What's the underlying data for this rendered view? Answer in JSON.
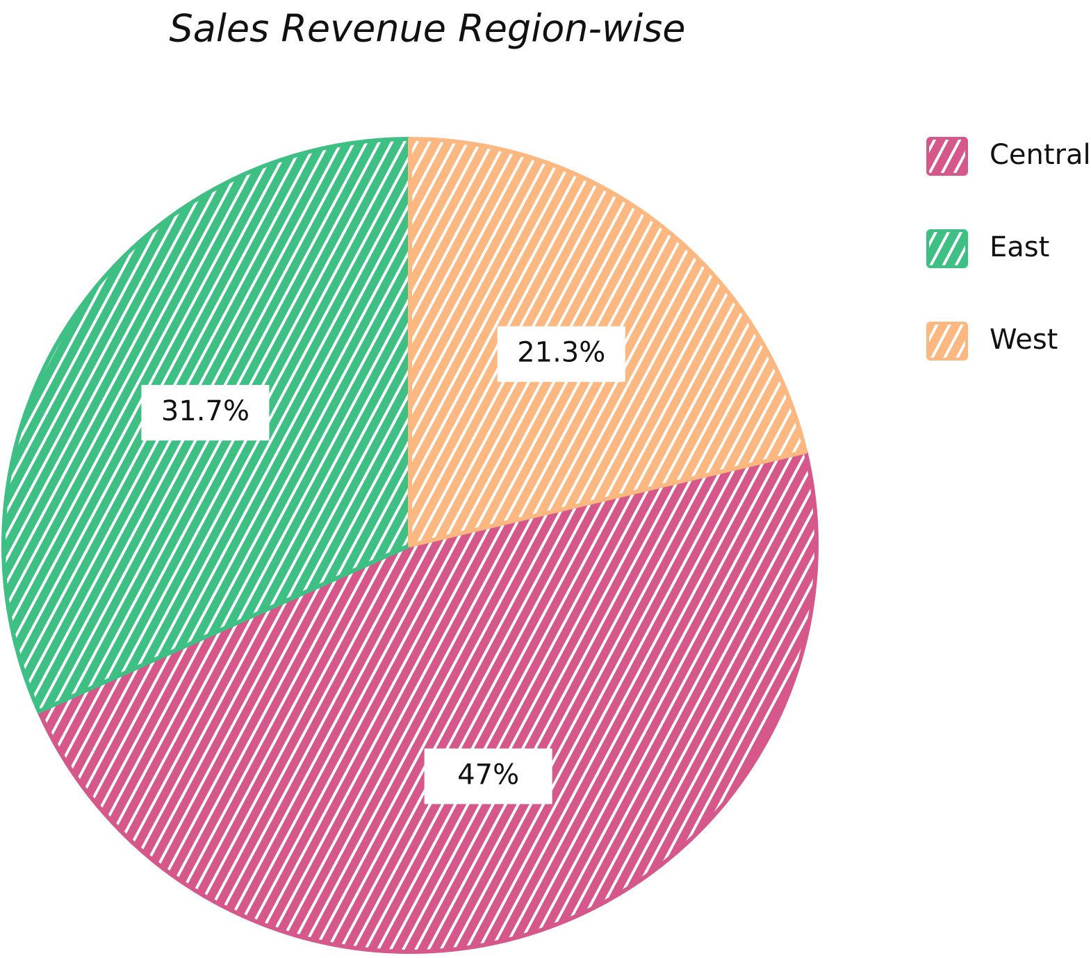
{
  "chart_data": {
    "type": "pie",
    "title": "Sales Revenue Region-wise",
    "categories": [
      "Central",
      "East",
      "West"
    ],
    "values": [
      47,
      31.7,
      21.3
    ],
    "value_labels": [
      "47%",
      "31.7%",
      "21.3%"
    ],
    "colors": [
      "#d6588a",
      "#3ebf84",
      "#fdb882"
    ],
    "legend": "right"
  }
}
